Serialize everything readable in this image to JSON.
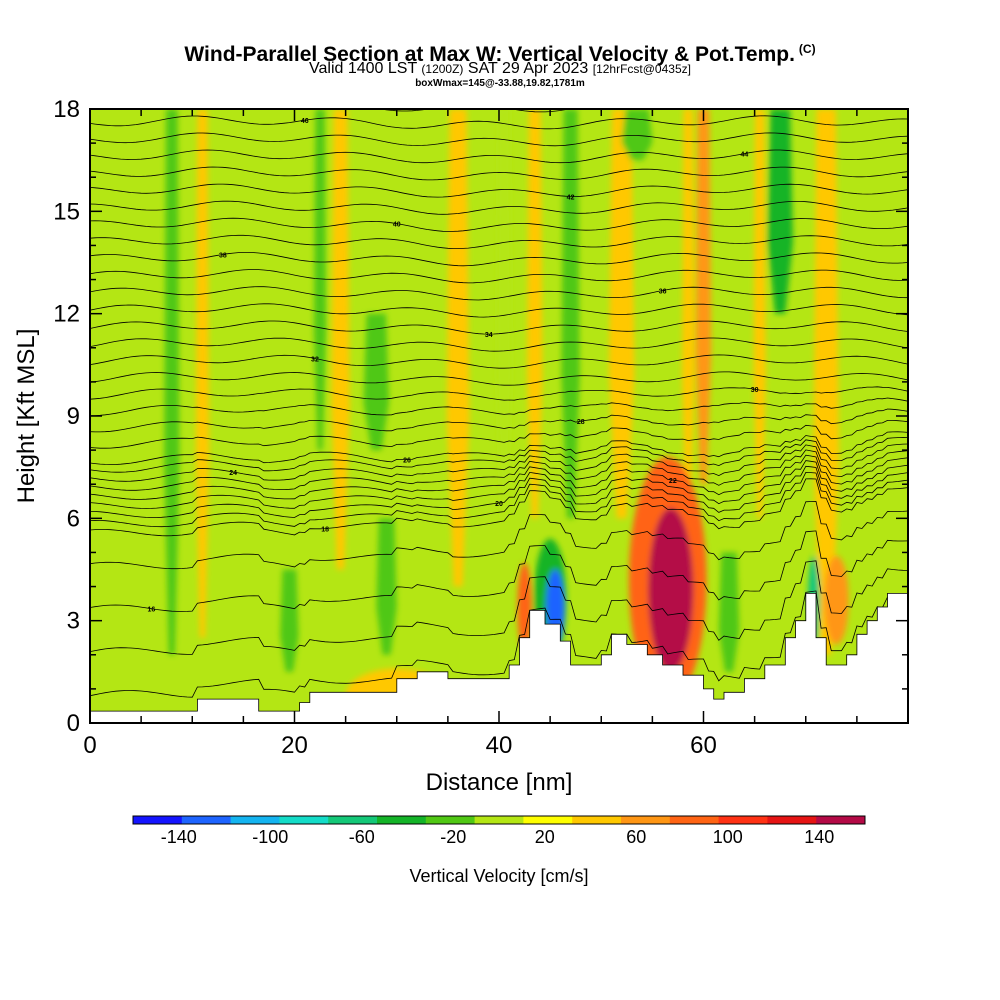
{
  "header": {
    "title": "Wind-Parallel Section at Max W: Vertical Velocity & Pot.Temp.",
    "title_tag": "(C)",
    "valid_prefix": "Valid 1400 LST",
    "valid_utc": "(1200Z)",
    "valid_date": "SAT 29 Apr 2023",
    "forecast": "[12hrFcst@0435z]",
    "box_info": "boxWmax=145@-33.88,19.82,1781m"
  },
  "chart_data": {
    "type": "heatmap",
    "xlabel": "Distance [nm]",
    "ylabel": "Height [Kft MSL]",
    "xlim": [
      0,
      80
    ],
    "ylim": [
      0,
      18
    ],
    "x_ticks": [
      0,
      20,
      40,
      60
    ],
    "y_ticks": [
      0,
      3,
      6,
      9,
      12,
      15,
      18
    ],
    "colorbar": {
      "label": "Vertical Velocity [cm/s]",
      "range": [
        -160,
        160
      ],
      "step": 20,
      "tick_values": [
        -140,
        -100,
        -60,
        -20,
        20,
        60,
        100,
        140
      ],
      "tick_labels": [
        "-140",
        "-100",
        "-60",
        "-20",
        "20",
        "60",
        "100",
        "140"
      ],
      "colors": [
        "#1414ff",
        "#1e64ff",
        "#14b4f0",
        "#14dcc8",
        "#14c878",
        "#14b428",
        "#50c814",
        "#b4e614",
        "#ffff00",
        "#ffc800",
        "#ff9614",
        "#ff6414",
        "#ff3214",
        "#e61414",
        "#b40a46"
      ]
    },
    "background_value": -5,
    "updraft_bands": [
      {
        "x": 11,
        "w": 1.3,
        "y0": 2.5,
        "y1": 18,
        "value": 20
      },
      {
        "x": 24.5,
        "w": 1.8,
        "y0": 4.5,
        "y1": 18,
        "value": 30
      },
      {
        "x": 36,
        "w": 2.2,
        "y0": 4,
        "y1": 18,
        "value": 30
      },
      {
        "x": 43.5,
        "w": 1.5,
        "y0": 6,
        "y1": 18,
        "value": 25
      },
      {
        "x": 52,
        "w": 2.5,
        "y0": 6,
        "y1": 18,
        "value": 25
      },
      {
        "x": 58.5,
        "w": 1.2,
        "y0": 6,
        "y1": 18,
        "value": 30
      },
      {
        "x": 60,
        "w": 1.5,
        "y0": 7,
        "y1": 18,
        "value": 50
      },
      {
        "x": 65.5,
        "w": 1.2,
        "y0": 6,
        "y1": 18,
        "value": 20
      },
      {
        "x": 72,
        "w": 2.5,
        "y0": 2,
        "y1": 18,
        "value": 25
      }
    ],
    "downdraft_bands": [
      {
        "x": 8,
        "w": 1.5,
        "y0": 2,
        "y1": 18,
        "value": -25
      },
      {
        "x": 22.5,
        "w": 1.2,
        "y0": 8,
        "y1": 18,
        "value": -30
      },
      {
        "x": 28,
        "w": 2.5,
        "y0": 8,
        "y1": 12,
        "value": -25
      },
      {
        "x": 29,
        "w": 2,
        "y0": 2,
        "y1": 6,
        "value": -25
      },
      {
        "x": 19.5,
        "w": 1.8,
        "y0": 1.5,
        "y1": 4.5,
        "value": -40
      },
      {
        "x": 40.5,
        "w": 1.5,
        "y0": 6,
        "y1": 18,
        "value": -20
      },
      {
        "x": 47,
        "w": 1.8,
        "y0": 6,
        "y1": 18,
        "value": -30
      },
      {
        "x": 62.5,
        "w": 2,
        "y0": 1.5,
        "y1": 5,
        "value": -30
      },
      {
        "x": 67.5,
        "w": 2.5,
        "y0": 12,
        "y1": 18,
        "value": -60
      },
      {
        "x": 53.5,
        "w": 3,
        "y0": 16.5,
        "y1": 18,
        "value": -40
      }
    ],
    "cells": [
      {
        "x": 56.8,
        "y": 3.9,
        "rx": 2.2,
        "ry": 2.4,
        "value": 140
      },
      {
        "x": 56.5,
        "y": 4.2,
        "rx": 3.8,
        "ry": 3.6,
        "value": 60
      },
      {
        "x": 45.5,
        "y": 3.4,
        "rx": 0.9,
        "ry": 1.1,
        "value": -140
      },
      {
        "x": 45,
        "y": 3.6,
        "rx": 1.6,
        "ry": 1.8,
        "value": -60
      },
      {
        "x": 42.5,
        "y": 3.4,
        "rx": 0.7,
        "ry": 1.3,
        "value": 60
      },
      {
        "x": 70.8,
        "y": 3.6,
        "rx": 0.6,
        "ry": 1.3,
        "value": -80
      },
      {
        "x": 73,
        "y": 3.6,
        "rx": 1.2,
        "ry": 1.3,
        "value": 40
      },
      {
        "x": 30,
        "y": 0.8,
        "rx": 5,
        "ry": 0.8,
        "value": 20
      }
    ],
    "terrain_kft": [
      [
        0,
        0.35
      ],
      [
        10.5,
        0.35
      ],
      [
        10.5,
        0.7
      ],
      [
        16.5,
        0.7
      ],
      [
        16.5,
        0.35
      ],
      [
        20.5,
        0.35
      ],
      [
        20.5,
        0.6
      ],
      [
        21.5,
        0.6
      ],
      [
        21.5,
        0.9
      ],
      [
        30,
        0.9
      ],
      [
        30,
        1.3
      ],
      [
        32,
        1.3
      ],
      [
        32,
        1.5
      ],
      [
        35,
        1.5
      ],
      [
        35,
        1.3
      ],
      [
        41,
        1.3
      ],
      [
        41,
        1.7
      ],
      [
        42,
        1.7
      ],
      [
        42,
        2.5
      ],
      [
        43,
        2.5
      ],
      [
        43,
        3.3
      ],
      [
        44.5,
        3.3
      ],
      [
        44.5,
        2.9
      ],
      [
        46,
        2.9
      ],
      [
        46,
        2.4
      ],
      [
        47,
        2.4
      ],
      [
        47,
        1.7
      ],
      [
        50,
        1.7
      ],
      [
        50,
        2.0
      ],
      [
        51,
        2.0
      ],
      [
        51,
        2.6
      ],
      [
        52.5,
        2.6
      ],
      [
        52.5,
        2.3
      ],
      [
        54.5,
        2.3
      ],
      [
        54.5,
        2.0
      ],
      [
        56,
        2.0
      ],
      [
        56,
        1.7
      ],
      [
        58,
        1.7
      ],
      [
        58,
        1.4
      ],
      [
        60,
        1.4
      ],
      [
        60,
        1.0
      ],
      [
        61,
        1.0
      ],
      [
        61,
        0.7
      ],
      [
        62,
        0.7
      ],
      [
        62,
        0.9
      ],
      [
        64,
        0.9
      ],
      [
        64,
        1.3
      ],
      [
        66,
        1.3
      ],
      [
        66,
        1.7
      ],
      [
        68,
        1.7
      ],
      [
        68,
        2.5
      ],
      [
        69,
        2.5
      ],
      [
        69,
        3.0
      ],
      [
        70,
        3.0
      ],
      [
        70,
        3.8
      ],
      [
        71,
        3.8
      ],
      [
        71,
        2.5
      ],
      [
        72,
        2.5
      ],
      [
        72,
        1.7
      ],
      [
        74,
        1.7
      ],
      [
        74,
        2.0
      ],
      [
        75,
        2.0
      ],
      [
        75,
        2.6
      ],
      [
        76,
        2.6
      ],
      [
        76,
        3.0
      ],
      [
        77,
        3.0
      ],
      [
        77,
        3.4
      ],
      [
        78,
        3.4
      ],
      [
        78,
        3.8
      ],
      [
        80,
        3.8
      ],
      [
        80,
        0
      ]
    ],
    "isentropes": {
      "start": 14,
      "step": 1,
      "count": 34,
      "label_values": [
        16,
        18,
        20,
        22,
        24,
        26,
        28,
        30,
        32,
        34,
        36,
        38,
        40,
        42,
        44,
        46
      ],
      "labels": [
        "16",
        "18",
        "20",
        "22",
        "24",
        "26",
        "28",
        "30",
        "32",
        "34",
        "36",
        "38",
        "40",
        "42",
        "44",
        "46"
      ]
    }
  }
}
